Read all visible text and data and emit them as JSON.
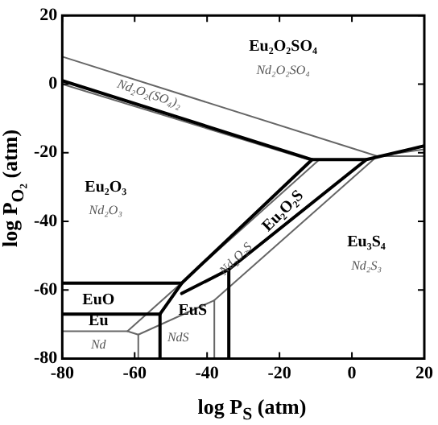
{
  "chart_data": {
    "type": "line",
    "xlabel": "log P$_{S}$ (atm)",
    "ylabel": "log P$_{O₂}$ (atm)",
    "xlim": [
      -80,
      20
    ],
    "xticks": [
      -80,
      -60,
      -40,
      -20,
      0,
      20
    ],
    "ylim": [
      -80,
      20
    ],
    "yticks": [
      -80,
      -60,
      -40,
      -20,
      0,
      20
    ],
    "marker": "none",
    "series": [
      {
        "color": "#000000",
        "x": [
          -80,
          -11,
          4
        ],
        "values": [
          1,
          -22,
          -22
        ]
      },
      {
        "color": "#000000",
        "x": [
          -80,
          -47,
          -11
        ],
        "values": [
          -58,
          -58,
          -22
        ]
      },
      {
        "color": "#000000",
        "x": [
          20,
          4,
          -34,
          -34
        ],
        "values": [
          -18,
          -22,
          -54,
          -80
        ]
      },
      {
        "color": "#000000",
        "x": [
          -47,
          -34
        ],
        "values": [
          -61,
          -54
        ]
      },
      {
        "color": "#000000",
        "x": [
          -47,
          -53,
          -53
        ],
        "values": [
          -58,
          -67,
          -80
        ]
      },
      {
        "color": "#000000",
        "x": [
          -80,
          -53
        ],
        "values": [
          -67,
          -67
        ]
      },
      {
        "color": "#666666",
        "x": [
          -80,
          7,
          20
        ],
        "values": [
          8,
          -21,
          -19
        ]
      },
      {
        "color": "#666666",
        "x": [
          -80,
          -12
        ],
        "values": [
          0,
          -22
        ]
      },
      {
        "color": "#666666",
        "x": [
          -62,
          -9
        ],
        "values": [
          -72,
          -22
        ]
      },
      {
        "color": "#666666",
        "x": [
          -80,
          -62,
          -59,
          -59
        ],
        "values": [
          -72,
          -72,
          -73,
          -80
        ]
      },
      {
        "color": "#666666",
        "x": [
          -59,
          -38,
          -38
        ],
        "values": [
          -73,
          -63,
          -80
        ]
      },
      {
        "color": "#666666",
        "x": [
          -38,
          7,
          20
        ],
        "values": [
          -63,
          -21,
          -21
        ]
      }
    ],
    "annotations": [
      "Eu₂O₂SO₄",
      "Eu₂O₃",
      "Eu₂O₂S",
      "Eu₃S₄",
      "EuO",
      "EuS",
      "Eu",
      "Nd₂O₂SO₄",
      "Nd₂O₂(SO₄)₂",
      "Nd₂O₃",
      "Nd₂O₂S",
      "Nd₂S₃",
      "NdS",
      "Nd"
    ]
  }
}
